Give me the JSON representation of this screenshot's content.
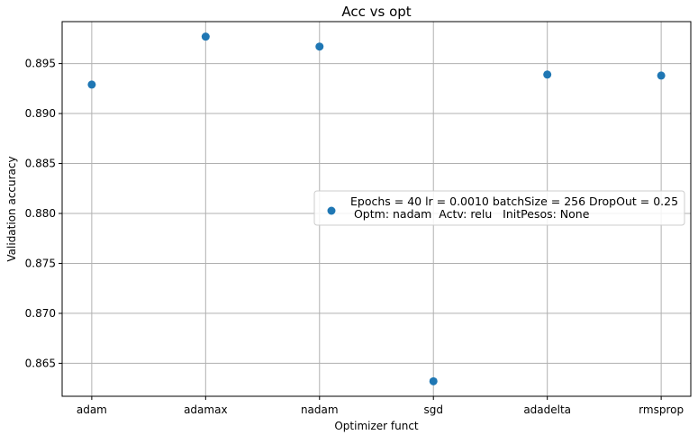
{
  "chart_data": {
    "type": "scatter",
    "title": "Acc vs opt",
    "xlabel": "Optimizer funct",
    "ylabel": "Validation accuracy",
    "categories": [
      "adam",
      "adamax",
      "nadam",
      "sgd",
      "adadelta",
      "rmsprop"
    ],
    "series": [
      {
        "name": "Epochs = 40 lr = 0.0010 batchSize = 256 DropOut = 0.25\n Optm: nadam  Actv: relu   InitPesos: None",
        "values": [
          0.8929,
          0.8977,
          0.8967,
          0.8632,
          0.8939,
          0.8938
        ],
        "color": "#1f77b4"
      }
    ],
    "yticks": [
      "0.865",
      "0.870",
      "0.875",
      "0.880",
      "0.885",
      "0.890",
      "0.895"
    ],
    "ylim": [
      0.8617,
      0.8992
    ],
    "grid": true,
    "legend_position": "center-right"
  }
}
